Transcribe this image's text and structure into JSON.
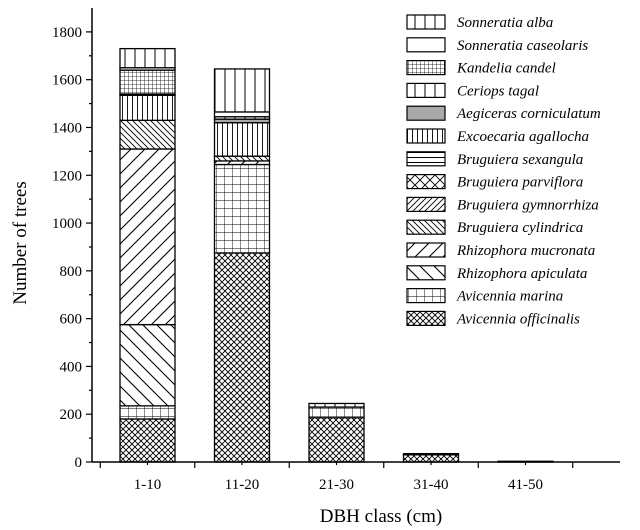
{
  "chart_data": {
    "type": "bar",
    "stacked": true,
    "xlabel": "DBH class (cm)",
    "ylabel": "Number of trees",
    "ylim": [
      0,
      1900
    ],
    "yticks": [
      0,
      200,
      400,
      600,
      800,
      1000,
      1200,
      1400,
      1600,
      1800
    ],
    "categories": [
      "1-10",
      "11-20",
      "21-30",
      "31-40",
      "41-50"
    ],
    "legend_position": "top-right",
    "series": [
      {
        "name": "Avicennia officinalis",
        "pattern": "crosshatch-diag",
        "values": [
          180,
          875,
          185,
          30,
          3
        ]
      },
      {
        "name": "Avicennia marina",
        "pattern": "grid",
        "values": [
          55,
          370,
          45,
          5,
          0
        ]
      },
      {
        "name": "Rhizophora apiculata",
        "pattern": "diag-back-wide",
        "values": [
          340,
          0,
          0,
          0,
          0
        ]
      },
      {
        "name": "Rhizophora mucronata",
        "pattern": "diag-fwd-wide",
        "values": [
          735,
          15,
          0,
          0,
          0
        ]
      },
      {
        "name": "Bruguiera cylindrica",
        "pattern": "diag-back-dense",
        "values": [
          120,
          20,
          0,
          0,
          0
        ]
      },
      {
        "name": "Bruguiera gymnorrhiza",
        "pattern": "diag-fwd-dense",
        "values": [
          0,
          0,
          0,
          0,
          0
        ]
      },
      {
        "name": "Bruguiera parviflora",
        "pattern": "x-hatch",
        "values": [
          0,
          0,
          0,
          0,
          0
        ]
      },
      {
        "name": "Bruguiera sexangula",
        "pattern": "horizontal",
        "values": [
          0,
          0,
          0,
          0,
          0
        ]
      },
      {
        "name": "Excoecaria agallocha",
        "pattern": "vertical-dense",
        "values": [
          105,
          140,
          0,
          0,
          0
        ]
      },
      {
        "name": "Aegiceras corniculatum",
        "pattern": "gray",
        "values": [
          5,
          15,
          0,
          0,
          0
        ]
      },
      {
        "name": "Ceriops tagal",
        "pattern": "vertical-wide",
        "values": [
          0,
          10,
          0,
          0,
          0
        ]
      },
      {
        "name": "Kandelia candel",
        "pattern": "fine-grid",
        "values": [
          100,
          0,
          0,
          0,
          0
        ]
      },
      {
        "name": "Sonneratia caseolaris",
        "pattern": "blank",
        "values": [
          10,
          20,
          0,
          0,
          0
        ]
      },
      {
        "name": "Sonneratia alba",
        "pattern": "vertical-wide",
        "values": [
          80,
          180,
          15,
          0,
          0
        ]
      }
    ]
  }
}
